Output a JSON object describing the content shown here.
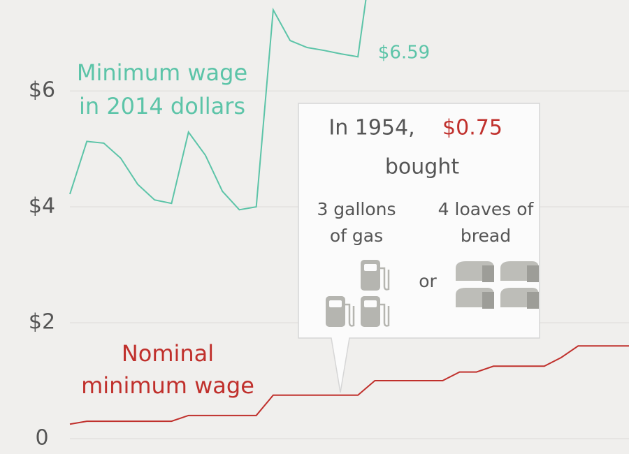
{
  "chart_data": {
    "type": "line",
    "categories": [
      null,
      null,
      null,
      null,
      null,
      null,
      null,
      null,
      null,
      null,
      null,
      null,
      null,
      null,
      null,
      null,
      null,
      null,
      null,
      null,
      null,
      null,
      null,
      null,
      null,
      null,
      null,
      null,
      null,
      null,
      null,
      null,
      null,
      null
    ],
    "series": [
      {
        "label_lines": [
          "Nominal",
          "minimum wage"
        ],
        "color": "#c0302c",
        "values": [
          0.25,
          0.3,
          0.3,
          0.3,
          0.3,
          0.3,
          0.3,
          0.4,
          0.4,
          0.4,
          0.4,
          0.4,
          0.75,
          0.75,
          0.75,
          0.75,
          0.75,
          0.75,
          1.0,
          1.0,
          1.0,
          1.0,
          1.0,
          1.15,
          1.15,
          1.25,
          1.25,
          1.25,
          1.25,
          1.4,
          1.6,
          1.6,
          1.6,
          1.6
        ]
      },
      {
        "label_lines": [
          "Minimum wage",
          "in 2014 dollars"
        ],
        "color": "#5cc4a8",
        "values": [
          4.22,
          5.13,
          5.1,
          4.84,
          4.39,
          4.12,
          4.06,
          5.29,
          4.89,
          4.27,
          3.95,
          4.0,
          7.4,
          6.87,
          6.75,
          6.7,
          6.64,
          6.59,
          8.69,
          null,
          null,
          null,
          null,
          null,
          null,
          null,
          null,
          null,
          null,
          null,
          null,
          null,
          null,
          null
        ]
      }
    ],
    "annotations": [
      "$6.59"
    ],
    "callout": {
      "year": "In 1954,",
      "price": "$0.75",
      "verb": "bought",
      "left": [
        "3 gallons",
        "of gas"
      ],
      "or": "or",
      "right": [
        "4 loaves of",
        "bread"
      ]
    },
    "ylim": [
      0,
      7.57
    ],
    "yticks": [
      0,
      {
        "value": 2,
        "label": "$2"
      },
      {
        "value": 4,
        "label": "$4"
      },
      {
        "value": 6,
        "label": "$6"
      }
    ],
    "grid": true
  }
}
